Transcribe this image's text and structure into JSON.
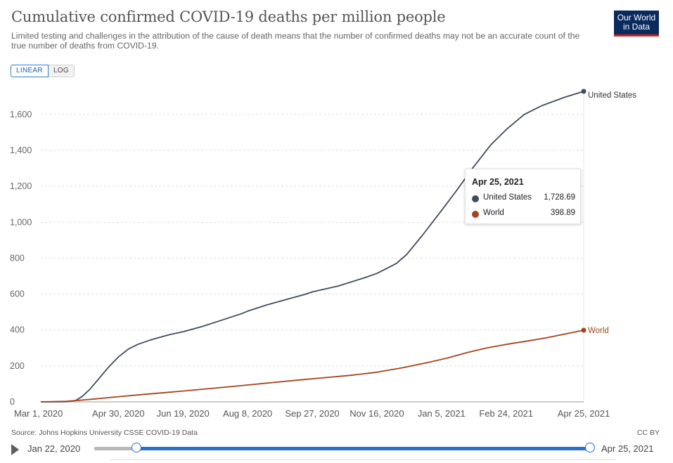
{
  "header": {
    "title": "Cumulative confirmed COVID-19 deaths per million people",
    "subtitle": "Limited testing and challenges in the attribution of the cause of death means that the number of confirmed deaths may not be an accurate count of the true number of deaths from COVID-19.",
    "logo_line1": "Our World",
    "logo_line2": "in Data"
  },
  "controls": {
    "linear_label": "LINEAR",
    "log_label": "LOG",
    "selected_scale": "LINEAR"
  },
  "tooltip": {
    "date": "Apr 25, 2021",
    "rows": [
      {
        "name": "United States",
        "value": "1,728.69",
        "color": "#3f4c5e"
      },
      {
        "name": "World",
        "value": "398.89",
        "color": "#a2441f"
      }
    ]
  },
  "footer": {
    "source": "Source: Johns Hopkins University CSSE COVID-19 Data",
    "license": "CC BY"
  },
  "timeline": {
    "start_label": "Jan 22, 2020",
    "end_label": "Apr 25, 2021",
    "accent": "#2a6fcc"
  },
  "chart_data": {
    "type": "line",
    "title": "Cumulative confirmed COVID-19 deaths per million people",
    "xlabel": "",
    "ylabel": "",
    "x_start": "Mar 1, 2020",
    "x_end": "Apr 25, 2021",
    "xlim_days": [
      0,
      420
    ],
    "ylim": [
      0,
      1728.69
    ],
    "grid": true,
    "legend": "line-end labels",
    "x_ticks": [
      {
        "label": "Mar 1, 2020",
        "day": 0
      },
      {
        "label": "Apr 30, 2020",
        "day": 60
      },
      {
        "label": "Jun 19, 2020",
        "day": 110
      },
      {
        "label": "Aug 8, 2020",
        "day": 160
      },
      {
        "label": "Sep 27, 2020",
        "day": 210
      },
      {
        "label": "Nov 16, 2020",
        "day": 260
      },
      {
        "label": "Jan 5, 2021",
        "day": 310
      },
      {
        "label": "Feb 24, 2021",
        "day": 360
      },
      {
        "label": "Apr 25, 2021",
        "day": 420
      }
    ],
    "y_ticks": [
      {
        "label": "0",
        "value": 0
      },
      {
        "label": "200",
        "value": 200
      },
      {
        "label": "400",
        "value": 400
      },
      {
        "label": "600",
        "value": 600
      },
      {
        "label": "800",
        "value": 800
      },
      {
        "label": "1,000",
        "value": 1000
      },
      {
        "label": "1,200",
        "value": 1200
      },
      {
        "label": "1,400",
        "value": 1400
      },
      {
        "label": "1,600",
        "value": 1600
      }
    ],
    "series": [
      {
        "name": "United States",
        "color": "#3f4c5e",
        "points": [
          [
            0,
            0
          ],
          [
            10,
            0
          ],
          [
            20,
            1
          ],
          [
            27,
            8
          ],
          [
            32,
            30
          ],
          [
            38,
            70
          ],
          [
            45,
            130
          ],
          [
            52,
            190
          ],
          [
            60,
            250
          ],
          [
            68,
            295
          ],
          [
            75,
            320
          ],
          [
            85,
            345
          ],
          [
            100,
            375
          ],
          [
            110,
            390
          ],
          [
            125,
            420
          ],
          [
            140,
            455
          ],
          [
            155,
            490
          ],
          [
            160,
            505
          ],
          [
            175,
            540
          ],
          [
            190,
            570
          ],
          [
            205,
            600
          ],
          [
            210,
            612
          ],
          [
            230,
            645
          ],
          [
            250,
            690
          ],
          [
            260,
            715
          ],
          [
            275,
            770
          ],
          [
            283,
            820
          ],
          [
            295,
            925
          ],
          [
            310,
            1065
          ],
          [
            322,
            1180
          ],
          [
            334,
            1300
          ],
          [
            348,
            1430
          ],
          [
            360,
            1515
          ],
          [
            374,
            1600
          ],
          [
            388,
            1650
          ],
          [
            405,
            1695
          ],
          [
            420,
            1728.69
          ]
        ]
      },
      {
        "name": "World",
        "color": "#a2441f",
        "points": [
          [
            0,
            0
          ],
          [
            20,
            3
          ],
          [
            40,
            15
          ],
          [
            60,
            29
          ],
          [
            80,
            42
          ],
          [
            100,
            54
          ],
          [
            120,
            67
          ],
          [
            140,
            80
          ],
          [
            160,
            94
          ],
          [
            180,
            108
          ],
          [
            200,
            122
          ],
          [
            220,
            135
          ],
          [
            240,
            148
          ],
          [
            260,
            165
          ],
          [
            280,
            190
          ],
          [
            300,
            220
          ],
          [
            315,
            245
          ],
          [
            330,
            275
          ],
          [
            345,
            300
          ],
          [
            360,
            320
          ],
          [
            375,
            337
          ],
          [
            390,
            355
          ],
          [
            405,
            377
          ],
          [
            420,
            398.89
          ]
        ]
      }
    ]
  }
}
